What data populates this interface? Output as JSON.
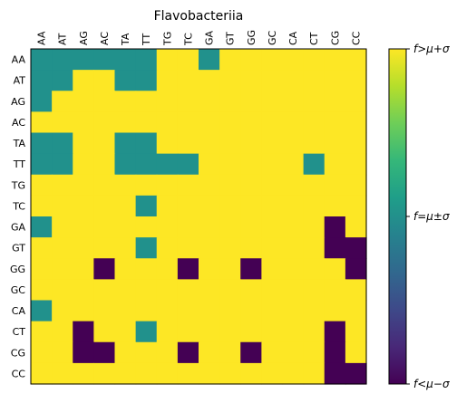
{
  "chart_data": {
    "type": "heatmap",
    "title": "Flavobacteriia",
    "x_labels": [
      "AA",
      "AT",
      "AG",
      "AC",
      "TA",
      "TT",
      "TG",
      "TC",
      "GA",
      "GT",
      "GG",
      "GC",
      "CA",
      "CT",
      "CG",
      "CC"
    ],
    "y_labels": [
      "AA",
      "AT",
      "AG",
      "AC",
      "TA",
      "TT",
      "TG",
      "TC",
      "GA",
      "GT",
      "GG",
      "GC",
      "CA",
      "CT",
      "CG",
      "CC"
    ],
    "value_legend": {
      "1": "f>μ+σ",
      "0": "f=μ±σ",
      "-1": "f<μ−σ"
    },
    "matrix": [
      [
        0,
        0,
        0,
        0,
        0,
        0,
        1,
        1,
        0,
        1,
        1,
        1,
        1,
        1,
        1,
        1
      ],
      [
        0,
        0,
        1,
        1,
        0,
        0,
        1,
        1,
        1,
        1,
        1,
        1,
        1,
        1,
        1,
        1
      ],
      [
        0,
        1,
        1,
        1,
        1,
        1,
        1,
        1,
        1,
        1,
        1,
        1,
        1,
        1,
        1,
        1
      ],
      [
        1,
        1,
        1,
        1,
        1,
        1,
        1,
        1,
        1,
        1,
        1,
        1,
        1,
        1,
        1,
        1
      ],
      [
        0,
        0,
        1,
        1,
        0,
        0,
        1,
        1,
        1,
        1,
        1,
        1,
        1,
        1,
        1,
        1
      ],
      [
        0,
        0,
        1,
        1,
        0,
        0,
        0,
        0,
        1,
        1,
        1,
        1,
        1,
        0,
        1,
        1
      ],
      [
        1,
        1,
        1,
        1,
        1,
        1,
        1,
        1,
        1,
        1,
        1,
        1,
        1,
        1,
        1,
        1
      ],
      [
        1,
        1,
        1,
        1,
        1,
        0,
        1,
        1,
        1,
        1,
        1,
        1,
        1,
        1,
        1,
        1
      ],
      [
        0,
        1,
        1,
        1,
        1,
        1,
        1,
        1,
        1,
        1,
        1,
        1,
        1,
        1,
        -1,
        1
      ],
      [
        1,
        1,
        1,
        1,
        1,
        0,
        1,
        1,
        1,
        1,
        1,
        1,
        1,
        1,
        -1,
        -1
      ],
      [
        1,
        1,
        1,
        -1,
        1,
        1,
        1,
        -1,
        1,
        1,
        -1,
        1,
        1,
        1,
        1,
        -1
      ],
      [
        1,
        1,
        1,
        1,
        1,
        1,
        1,
        1,
        1,
        1,
        1,
        1,
        1,
        1,
        1,
        1
      ],
      [
        0,
        1,
        1,
        1,
        1,
        1,
        1,
        1,
        1,
        1,
        1,
        1,
        1,
        1,
        1,
        1
      ],
      [
        1,
        1,
        -1,
        1,
        1,
        0,
        1,
        1,
        1,
        1,
        1,
        1,
        1,
        1,
        -1,
        1
      ],
      [
        1,
        1,
        -1,
        -1,
        1,
        1,
        1,
        -1,
        1,
        1,
        -1,
        1,
        1,
        1,
        -1,
        1
      ],
      [
        1,
        1,
        1,
        1,
        1,
        1,
        1,
        1,
        1,
        1,
        1,
        1,
        1,
        1,
        -1,
        -1
      ]
    ],
    "colors": {
      "high": "#fde725",
      "mid": "#21918c",
      "low": "#440154"
    },
    "colorbar": {
      "ticks": [
        "f>μ+σ",
        "f=μ±σ",
        "f<μ−σ"
      ],
      "gradient": [
        "#fde725",
        "#b5de2b",
        "#6ece58",
        "#35b779",
        "#1f9e89",
        "#26828e",
        "#31688e",
        "#3e4989",
        "#482878",
        "#440154"
      ]
    }
  }
}
